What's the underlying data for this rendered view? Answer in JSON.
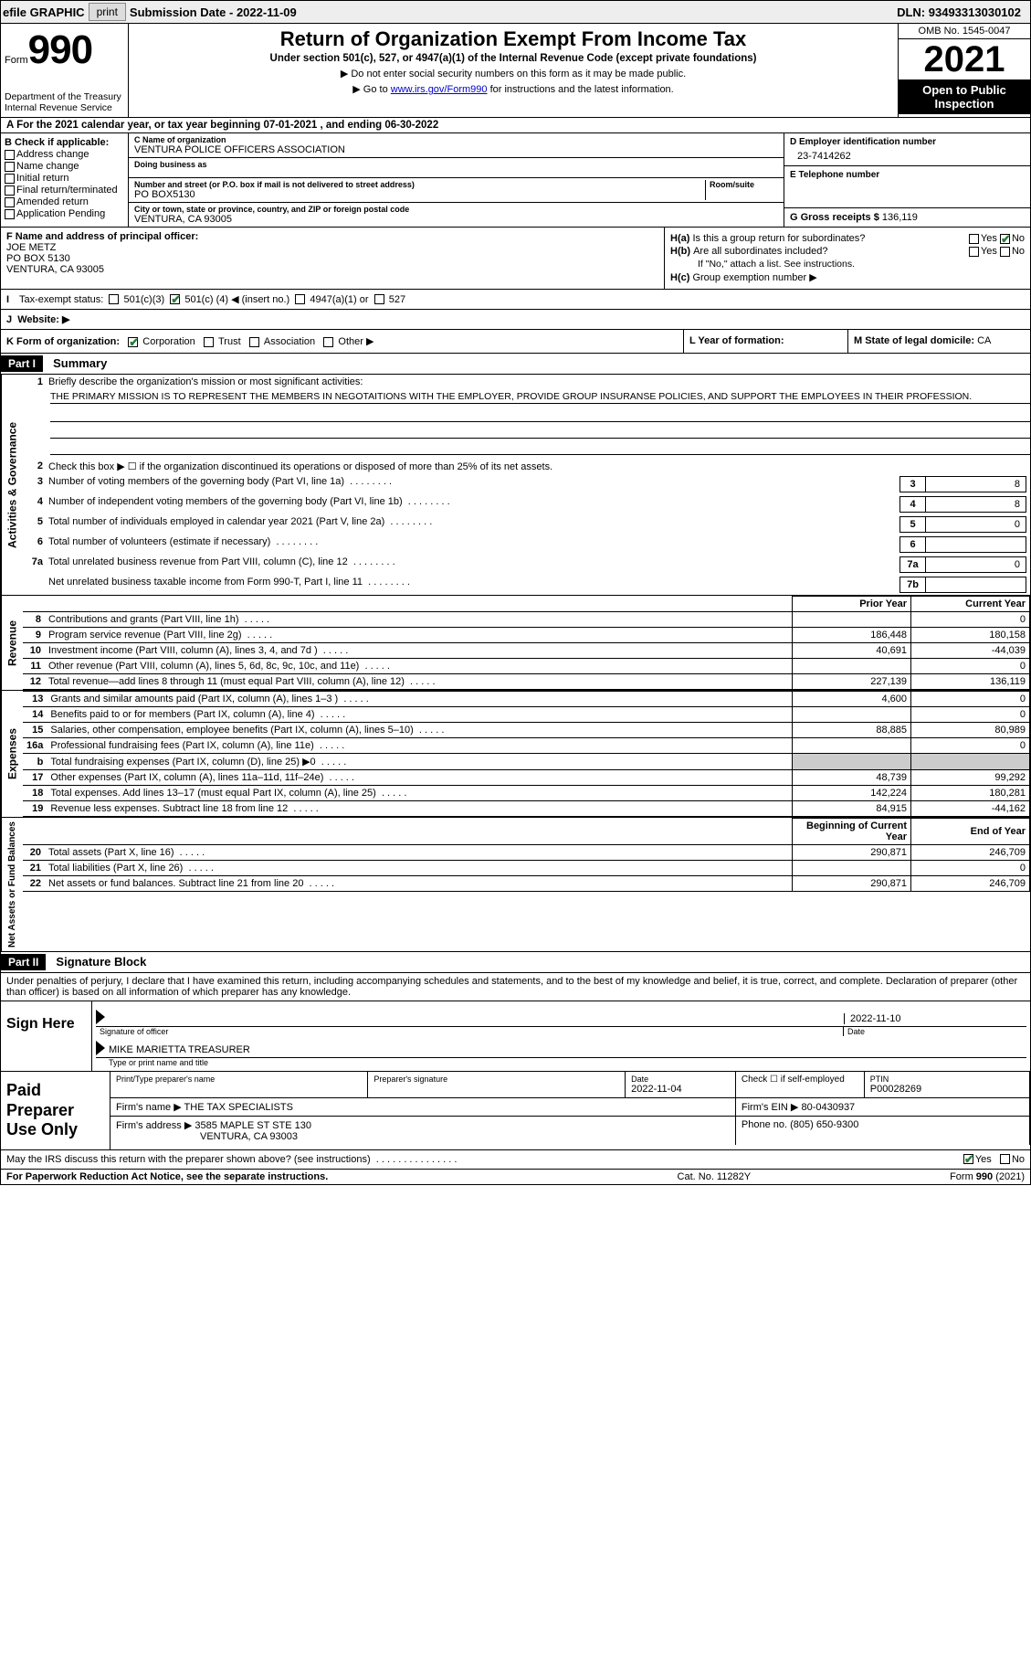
{
  "topbar": {
    "efile": "efile GRAPHIC",
    "print": "print",
    "submission_label": "Submission Date - ",
    "submission_date": "2022-11-09",
    "dln_label": "DLN: ",
    "dln": "93493313030102"
  },
  "header": {
    "form_word": "Form",
    "form_num": "990",
    "dept": "Department of the Treasury",
    "irs": "Internal Revenue Service",
    "title": "Return of Organization Exempt From Income Tax",
    "sub": "Under section 501(c), 527, or 4947(a)(1) of the Internal Revenue Code (except private foundations)",
    "note1": "▶ Do not enter social security numbers on this form as it may be made public.",
    "note2_pre": "▶ Go to ",
    "note2_link": "www.irs.gov/Form990",
    "note2_post": " for instructions and the latest information.",
    "omb": "OMB No. 1545-0047",
    "year": "2021",
    "inspect1": "Open to Public",
    "inspect2": "Inspection"
  },
  "rowA": {
    "text_pre": "A For the 2021 calendar year, or tax year beginning ",
    "begin": "07-01-2021",
    "text_mid": " , and ending ",
    "end": "06-30-2022"
  },
  "colB": {
    "hdr": "B Check if applicable:",
    "opts": [
      "Address change",
      "Name change",
      "Initial return",
      "Final return/terminated",
      "Amended return",
      "Application Pending"
    ]
  },
  "colC": {
    "name_lbl": "C Name of organization",
    "name": "VENTURA POLICE OFFICERS ASSOCIATION",
    "dba_lbl": "Doing business as",
    "street_lbl": "Number and street (or P.O. box if mail is not delivered to street address)",
    "room_lbl": "Room/suite",
    "street": "PO BOX5130",
    "city_lbl": "City or town, state or province, country, and ZIP or foreign postal code",
    "city": "VENTURA, CA  93005"
  },
  "colD": {
    "ein_lbl": "D Employer identification number",
    "ein": "23-7414262",
    "tel_lbl": "E Telephone number",
    "gross_lbl": "G Gross receipts $",
    "gross": "136,119"
  },
  "blockF": {
    "lbl": "F Name and address of principal officer:",
    "name": "JOE METZ",
    "street": "PO BOX 5130",
    "city": "VENTURA, CA  93005"
  },
  "blockH": {
    "ha_lbl": "H(a)",
    "ha_txt": "Is this a group return for subordinates?",
    "hb_lbl": "H(b)",
    "hb_txt": "Are all subordinates included?",
    "hb_note": "If \"No,\" attach a list. See instructions.",
    "hc_lbl": "H(c)",
    "hc_txt": "Group exemption number ▶",
    "yes": "Yes",
    "no": "No"
  },
  "rowI": {
    "lbl": "I",
    "txt": "Tax-exempt status:",
    "o1": "501(c)(3)",
    "o2_pre": "501(c) (",
    "o2_num": "4",
    "o2_post": ") ◀ (insert no.)",
    "o3": "4947(a)(1) or",
    "o4": "527"
  },
  "rowJ": {
    "lbl": "J",
    "txt": "Website: ▶"
  },
  "rowK": {
    "lbl": "K Form of organization:",
    "o1": "Corporation",
    "o2": "Trust",
    "o3": "Association",
    "o4": "Other ▶",
    "l_lbl": "L Year of formation:",
    "m_lbl": "M State of legal domicile:",
    "m_val": "CA"
  },
  "part1": {
    "hdr": "Part I",
    "title": "Summary",
    "vlab_ag": "Activities & Governance",
    "vlab_rev": "Revenue",
    "vlab_exp": "Expenses",
    "vlab_na": "Net Assets or Fund Balances",
    "l1_lbl": "1",
    "l1_txt": "Briefly describe the organization's mission or most significant activities:",
    "l1_val": "THE PRIMARY MISSION IS TO REPRESENT THE MEMBERS IN NEGOTAITIONS WITH THE EMPLOYER, PROVIDE GROUP INSURANSE POLICIES, AND SUPPORT THE EMPLOYEES IN THEIR PROFESSION.",
    "l2_lbl": "2",
    "l2_txt": "Check this box ▶ ☐ if the organization discontinued its operations or disposed of more than 25% of its net assets.",
    "lines_ag": [
      {
        "n": "3",
        "txt": "Number of voting members of the governing body (Part VI, line 1a)",
        "box": "3",
        "val": "8"
      },
      {
        "n": "4",
        "txt": "Number of independent voting members of the governing body (Part VI, line 1b)",
        "box": "4",
        "val": "8"
      },
      {
        "n": "5",
        "txt": "Total number of individuals employed in calendar year 2021 (Part V, line 2a)",
        "box": "5",
        "val": "0"
      },
      {
        "n": "6",
        "txt": "Total number of volunteers (estimate if necessary)",
        "box": "6",
        "val": ""
      },
      {
        "n": "7a",
        "txt": "Total unrelated business revenue from Part VIII, column (C), line 12",
        "box": "7a",
        "val": "0"
      },
      {
        "n": "",
        "txt": "Net unrelated business taxable income from Form 990-T, Part I, line 11",
        "box": "7b",
        "val": ""
      }
    ],
    "pycy_hdr_py": "Prior Year",
    "pycy_hdr_cy": "Current Year",
    "rev_rows": [
      {
        "n": "8",
        "txt": "Contributions and grants (Part VIII, line 1h)",
        "py": "",
        "cy": "0"
      },
      {
        "n": "9",
        "txt": "Program service revenue (Part VIII, line 2g)",
        "py": "186,448",
        "cy": "180,158"
      },
      {
        "n": "10",
        "txt": "Investment income (Part VIII, column (A), lines 3, 4, and 7d )",
        "py": "40,691",
        "cy": "-44,039"
      },
      {
        "n": "11",
        "txt": "Other revenue (Part VIII, column (A), lines 5, 6d, 8c, 9c, 10c, and 11e)",
        "py": "",
        "cy": "0"
      },
      {
        "n": "12",
        "txt": "Total revenue—add lines 8 through 11 (must equal Part VIII, column (A), line 12)",
        "py": "227,139",
        "cy": "136,119"
      }
    ],
    "exp_rows": [
      {
        "n": "13",
        "txt": "Grants and similar amounts paid (Part IX, column (A), lines 1–3 )",
        "py": "4,600",
        "cy": "0"
      },
      {
        "n": "14",
        "txt": "Benefits paid to or for members (Part IX, column (A), line 4)",
        "py": "",
        "cy": "0"
      },
      {
        "n": "15",
        "txt": "Salaries, other compensation, employee benefits (Part IX, column (A), lines 5–10)",
        "py": "88,885",
        "cy": "80,989"
      },
      {
        "n": "16a",
        "txt": "Professional fundraising fees (Part IX, column (A), line 11e)",
        "py": "",
        "cy": "0"
      },
      {
        "n": "b",
        "txt": "Total fundraising expenses (Part IX, column (D), line 25) ▶0",
        "py": "GRAY",
        "cy": "GRAY"
      },
      {
        "n": "17",
        "txt": "Other expenses (Part IX, column (A), lines 11a–11d, 11f–24e)",
        "py": "48,739",
        "cy": "99,292"
      },
      {
        "n": "18",
        "txt": "Total expenses. Add lines 13–17 (must equal Part IX, column (A), line 25)",
        "py": "142,224",
        "cy": "180,281"
      },
      {
        "n": "19",
        "txt": "Revenue less expenses. Subtract line 18 from line 12",
        "py": "84,915",
        "cy": "-44,162"
      }
    ],
    "na_hdr_beg": "Beginning of Current Year",
    "na_hdr_end": "End of Year",
    "na_rows": [
      {
        "n": "20",
        "txt": "Total assets (Part X, line 16)",
        "py": "290,871",
        "cy": "246,709"
      },
      {
        "n": "21",
        "txt": "Total liabilities (Part X, line 26)",
        "py": "",
        "cy": "0"
      },
      {
        "n": "22",
        "txt": "Net assets or fund balances. Subtract line 21 from line 20",
        "py": "290,871",
        "cy": "246,709"
      }
    ]
  },
  "part2": {
    "hdr": "Part II",
    "title": "Signature Block",
    "intro": "Under penalties of perjury, I declare that I have examined this return, including accompanying schedules and statements, and to the best of my knowledge and belief, it is true, correct, and complete. Declaration of preparer (other than officer) is based on all information of which preparer has any knowledge.",
    "sign_here": "Sign Here",
    "sig_officer": "Signature of officer",
    "sig_date": "2022-11-10",
    "date_lbl": "Date",
    "officer_name": "MIKE MARIETTA TREASURER",
    "officer_name_lbl": "Type or print name and title",
    "paid_prep": "Paid Preparer Use Only",
    "pt_name_lbl": "Print/Type preparer's name",
    "pt_sig_lbl": "Preparer's signature",
    "pt_date_lbl": "Date",
    "pt_date": "2022-11-04",
    "pt_check_lbl": "Check ☐ if self-employed",
    "ptin_lbl": "PTIN",
    "ptin": "P00028269",
    "firm_name_lbl": "Firm's name    ▶",
    "firm_name": "THE TAX SPECIALISTS",
    "firm_ein_lbl": "Firm's EIN ▶",
    "firm_ein": "80-0430937",
    "firm_addr_lbl": "Firm's address ▶",
    "firm_addr1": "3585 MAPLE ST STE 130",
    "firm_addr2": "VENTURA, CA  93003",
    "phone_lbl": "Phone no.",
    "phone": "(805) 650-9300",
    "discuss": "May the IRS discuss this return with the preparer shown above? (see instructions)",
    "yes": "Yes",
    "no": "No"
  },
  "footer": {
    "l": "For Paperwork Reduction Act Notice, see the separate instructions.",
    "m": "Cat. No. 11282Y",
    "r": "Form 990 (2021)"
  }
}
